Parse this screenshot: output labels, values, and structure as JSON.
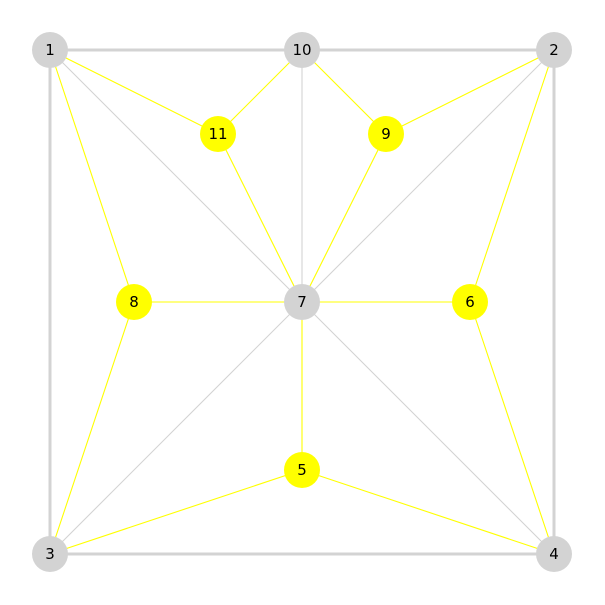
{
  "graph": {
    "nodes": [
      {
        "id": "1",
        "label": "1",
        "color": "#d3d3d3"
      },
      {
        "id": "2",
        "label": "2",
        "color": "#d3d3d3"
      },
      {
        "id": "3",
        "label": "3",
        "color": "#d3d3d3"
      },
      {
        "id": "4",
        "label": "4",
        "color": "#d3d3d3"
      },
      {
        "id": "5",
        "label": "5",
        "color": "#ffff00"
      },
      {
        "id": "6",
        "label": "6",
        "color": "#ffff00"
      },
      {
        "id": "7",
        "label": "7",
        "color": "#d3d3d3"
      },
      {
        "id": "8",
        "label": "8",
        "color": "#ffff00"
      },
      {
        "id": "9",
        "label": "9",
        "color": "#ffff00"
      },
      {
        "id": "10",
        "label": "10",
        "color": "#d3d3d3"
      },
      {
        "id": "11",
        "label": "11",
        "color": "#ffff00"
      }
    ],
    "edges": [
      {
        "source": "1",
        "target": "10",
        "color": "#d3d3d3",
        "style": "heavy"
      },
      {
        "source": "10",
        "target": "2",
        "color": "#d3d3d3",
        "style": "heavy"
      },
      {
        "source": "1",
        "target": "3",
        "color": "#d3d3d3",
        "style": "heavy"
      },
      {
        "source": "2",
        "target": "4",
        "color": "#d3d3d3",
        "style": "heavy"
      },
      {
        "source": "3",
        "target": "4",
        "color": "#d3d3d3",
        "style": "heavy"
      },
      {
        "source": "1",
        "target": "7",
        "color": "#d3d3d3",
        "style": "thin"
      },
      {
        "source": "2",
        "target": "7",
        "color": "#d3d3d3",
        "style": "thin"
      },
      {
        "source": "3",
        "target": "7",
        "color": "#d3d3d3",
        "style": "thin"
      },
      {
        "source": "4",
        "target": "7",
        "color": "#d3d3d3",
        "style": "thin"
      },
      {
        "source": "10",
        "target": "7",
        "color": "#d3d3d3",
        "style": "thin"
      },
      {
        "source": "1",
        "target": "11",
        "color": "#ffff00",
        "style": "thin"
      },
      {
        "source": "10",
        "target": "11",
        "color": "#ffff00",
        "style": "thin"
      },
      {
        "source": "11",
        "target": "7",
        "color": "#ffff00",
        "style": "thin"
      },
      {
        "source": "10",
        "target": "9",
        "color": "#ffff00",
        "style": "thin"
      },
      {
        "source": "2",
        "target": "9",
        "color": "#ffff00",
        "style": "thin"
      },
      {
        "source": "9",
        "target": "7",
        "color": "#ffff00",
        "style": "thin"
      },
      {
        "source": "1",
        "target": "8",
        "color": "#ffff00",
        "style": "thin"
      },
      {
        "source": "8",
        "target": "7",
        "color": "#ffff00",
        "style": "thin"
      },
      {
        "source": "8",
        "target": "3",
        "color": "#ffff00",
        "style": "thin"
      },
      {
        "source": "2",
        "target": "6",
        "color": "#ffff00",
        "style": "thin"
      },
      {
        "source": "6",
        "target": "7",
        "color": "#ffff00",
        "style": "thin"
      },
      {
        "source": "6",
        "target": "4",
        "color": "#ffff00",
        "style": "thin"
      },
      {
        "source": "7",
        "target": "5",
        "color": "#ffff00",
        "style": "thin"
      },
      {
        "source": "3",
        "target": "5",
        "color": "#ffff00",
        "style": "thin"
      },
      {
        "source": "5",
        "target": "4",
        "color": "#ffff00",
        "style": "thin"
      }
    ]
  }
}
